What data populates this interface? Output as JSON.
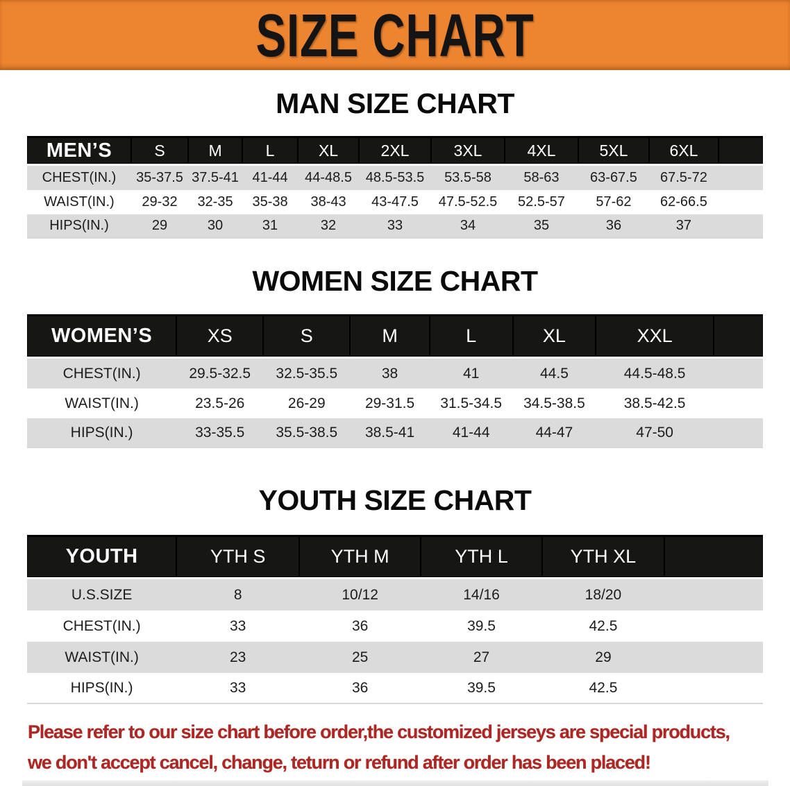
{
  "banner": {
    "title": "SIZE CHART"
  },
  "theme": {
    "banner_bg": "#EC8430",
    "banner_text": "#141414",
    "table_header_bg": "#161614",
    "table_header_text": "#FFFFFF",
    "row_stripe": "#DBDBDB",
    "footer_text": "#AC2825"
  },
  "sections": [
    {
      "heading": "MAN SIZE CHART",
      "table": {
        "header_label": "MEN’S",
        "columns": [
          "S",
          "M",
          "L",
          "XL",
          "2XL",
          "3XL",
          "4XL",
          "5XL",
          "6XL"
        ],
        "rows": [
          {
            "label": "CHEST(IN.)",
            "values": [
              "35-37.5",
              "37.5-41",
              "41-44",
              "44-48.5",
              "48.5-53.5",
              "53.5-58",
              "58-63",
              "63-67.5",
              "67.5-72"
            ]
          },
          {
            "label": "WAIST(IN.)",
            "values": [
              "29-32",
              "32-35",
              "35-38",
              "38-43",
              "43-47.5",
              "47.5-52.5",
              "52.5-57",
              "57-62",
              "62-66.5"
            ]
          },
          {
            "label": "HIPS(IN.)",
            "values": [
              "29",
              "30",
              "31",
              "32",
              "33",
              "34",
              "35",
              "36",
              "37"
            ]
          }
        ]
      }
    },
    {
      "heading": "WOMEN SIZE CHART",
      "table": {
        "header_label": "WOMEN’S",
        "columns": [
          "XS",
          "S",
          "M",
          "L",
          "XL",
          "XXL"
        ],
        "rows": [
          {
            "label": "CHEST(IN.)",
            "values": [
              "29.5-32.5",
              "32.5-35.5",
              "38",
              "41",
              "44.5",
              "44.5-48.5"
            ]
          },
          {
            "label": "WAIST(IN.)",
            "values": [
              "23.5-26",
              "26-29",
              "29-31.5",
              "31.5-34.5",
              "34.5-38.5",
              "38.5-42.5"
            ]
          },
          {
            "label": "HIPS(IN.)",
            "values": [
              "33-35.5",
              "35.5-38.5",
              "38.5-41",
              "41-44",
              "44-47",
              "47-50"
            ]
          }
        ]
      }
    },
    {
      "heading": "YOUTH SIZE CHART",
      "table": {
        "header_label": "YOUTH",
        "columns": [
          "YTH S",
          "YTH M",
          "YTH L",
          "YTH XL"
        ],
        "rows": [
          {
            "label": "U.S.SIZE",
            "values": [
              "8",
              "10/12",
              "14/16",
              "18/20"
            ]
          },
          {
            "label": "CHEST(IN.)",
            "values": [
              "33",
              "36",
              "39.5",
              "42.5"
            ]
          },
          {
            "label": "WAIST(IN.)",
            "values": [
              "23",
              "25",
              "27",
              "29"
            ]
          },
          {
            "label": "HIPS(IN.)",
            "values": [
              "33",
              "36",
              "39.5",
              "42.5"
            ]
          }
        ]
      }
    }
  ],
  "footer": {
    "line1": "Please refer to our size chart before order,the customized jerseys are special products,",
    "line2": "we don't accept cancel, change, teturn or refund after order has been placed!"
  }
}
